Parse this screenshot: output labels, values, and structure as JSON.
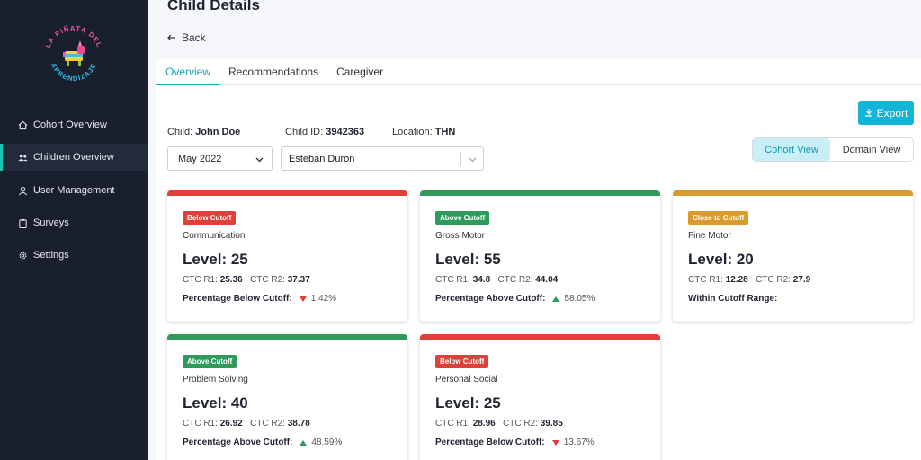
{
  "sidebar": {
    "logo_text": "LA PIÑATA DEL APRENDIZAJE",
    "items": [
      {
        "label": "Cohort Overview",
        "icon": "home-icon"
      },
      {
        "label": "Children Overview",
        "icon": "users-icon"
      },
      {
        "label": "User Management",
        "icon": "user-icon"
      },
      {
        "label": "Surveys",
        "icon": "clipboard-icon"
      },
      {
        "label": "Settings",
        "icon": "gear-icon"
      }
    ]
  },
  "header": {
    "title": "Child Details",
    "back_label": "Back"
  },
  "tabs": [
    {
      "label": "Overview"
    },
    {
      "label": "Recommendations"
    },
    {
      "label": "Caregiver"
    }
  ],
  "export_label": "Export",
  "child": {
    "name_label": "Child:",
    "name": "John Doe",
    "id_label": "Child ID:",
    "id": "3942363",
    "location_label": "Location:",
    "location": "THN"
  },
  "filters": {
    "date": "May 2022",
    "person": "Esteban Duron"
  },
  "view_toggle": {
    "cohort": "Cohort View",
    "domain": "Domain View"
  },
  "colors": {
    "below": "#e0403b",
    "above": "#2e9a5c",
    "close": "#d99b2b",
    "accent": "#13b4d8"
  },
  "cards": [
    {
      "badge": "Below Cutoff",
      "status": "below",
      "domain": "Communication",
      "level": "Level: 25",
      "r1_label": "CTC R1:",
      "r1": "25.36",
      "r2_label": "CTC R2:",
      "r2": "37.37",
      "pct_label": "Percentage Below Cutoff:",
      "pct": "1.42%",
      "trend": "down"
    },
    {
      "badge": "Above Cutoff",
      "status": "above",
      "domain": "Gross Motor",
      "level": "Level: 55",
      "r1_label": "CTC R1:",
      "r1": "34.8",
      "r2_label": "CTC R2:",
      "r2": "44.04",
      "pct_label": "Percentage Above Cutoff:",
      "pct": "58.05%",
      "trend": "up"
    },
    {
      "badge": "Close to Cutoff",
      "status": "close",
      "domain": "Fine Motor",
      "level": "Level: 20",
      "r1_label": "CTC R1:",
      "r1": "12.28",
      "r2_label": "CTC R2:",
      "r2": "27.9",
      "pct_label": "Within Cutoff Range:",
      "pct": "",
      "trend": "none"
    },
    {
      "badge": "Above Cutoff",
      "status": "above",
      "domain": "Problem Solving",
      "level": "Level: 40",
      "r1_label": "CTC R1:",
      "r1": "26.92",
      "r2_label": "CTC R2:",
      "r2": "38.78",
      "pct_label": "Percentage Above Cutoff:",
      "pct": "48.59%",
      "trend": "up"
    },
    {
      "badge": "Below Cutoff",
      "status": "below",
      "domain": "Personal Social",
      "level": "Level: 25",
      "r1_label": "CTC R1:",
      "r1": "28.96",
      "r2_label": "CTC R2:",
      "r2": "39.85",
      "pct_label": "Percentage Below Cutoff:",
      "pct": "13.67%",
      "trend": "down"
    }
  ]
}
